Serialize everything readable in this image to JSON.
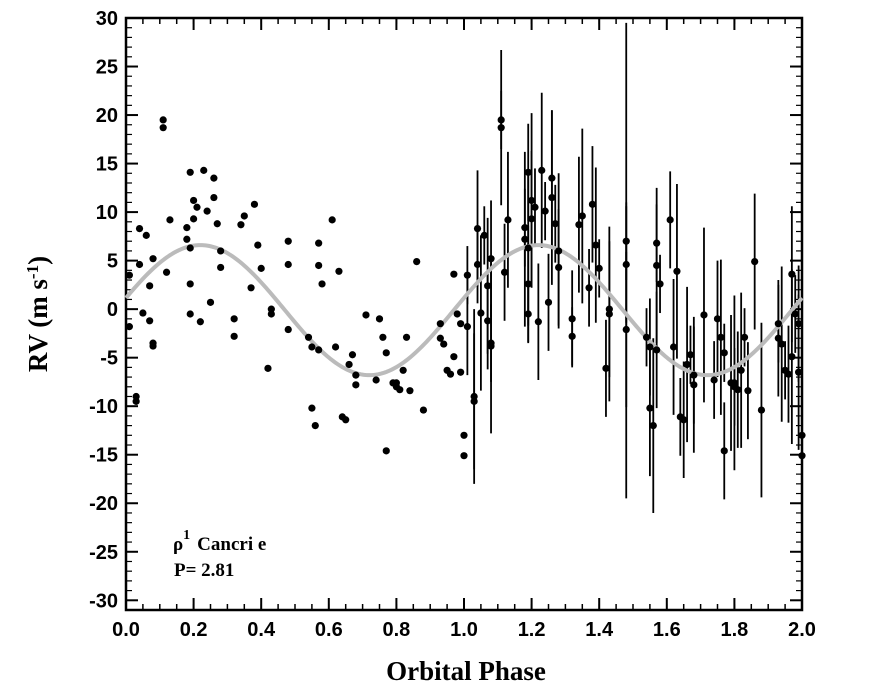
{
  "chart_data": {
    "type": "scatter",
    "xlabel": "Orbital Phase",
    "ylabel": {
      "main": "RV (m s",
      "sup": "-1",
      "close": ")"
    },
    "xlim": [
      0.0,
      2.0
    ],
    "ylim": [
      -31,
      30
    ],
    "x_ticks": [
      0.0,
      0.2,
      0.4,
      0.6,
      0.8,
      1.0,
      1.2,
      1.4,
      1.6,
      1.8,
      2.0
    ],
    "x_tick_labels": [
      "0.0",
      "0.2",
      "0.4",
      "0.6",
      "0.8",
      "1.0",
      "1.2",
      "1.4",
      "1.6",
      "1.8",
      "2.0"
    ],
    "y_ticks": [
      -30,
      -25,
      -20,
      -15,
      -10,
      -5,
      0,
      5,
      10,
      15,
      20,
      25,
      30
    ],
    "y_tick_labels": [
      "-30",
      "-25",
      "-20",
      "-15",
      "-10",
      "-5",
      "0",
      "5",
      "10",
      "15",
      "20",
      "25",
      "30"
    ],
    "grid": false,
    "annotation": {
      "object": {
        "symbol": "ρ",
        "sup": "1",
        "name": "Cancri e"
      },
      "period": "P= 2.81"
    },
    "fit_curve": {
      "amplitude": 6.7,
      "offset": -0.1,
      "phase_of_max": 0.22,
      "period_in_phase": 1.0,
      "color": "#bbbbbb"
    },
    "points_phase": [
      [
        0.01,
        3.5
      ],
      [
        0.01,
        -1.8
      ],
      [
        0.03,
        -9.5
      ],
      [
        0.03,
        -9.0
      ],
      [
        0.04,
        4.6
      ],
      [
        0.04,
        8.3
      ],
      [
        0.05,
        -0.4
      ],
      [
        0.06,
        7.6
      ],
      [
        0.07,
        -1.2
      ],
      [
        0.07,
        2.4
      ],
      [
        0.08,
        -3.8
      ],
      [
        0.08,
        -3.5
      ],
      [
        0.08,
        5.2
      ],
      [
        0.11,
        18.7
      ],
      [
        0.11,
        19.5
      ],
      [
        0.12,
        3.8
      ],
      [
        0.13,
        9.2
      ],
      [
        0.18,
        7.2
      ],
      [
        0.18,
        8.4
      ],
      [
        0.19,
        2.6
      ],
      [
        0.19,
        6.3
      ],
      [
        0.19,
        -0.5
      ],
      [
        0.19,
        14.1
      ],
      [
        0.2,
        9.3
      ],
      [
        0.2,
        11.2
      ],
      [
        0.21,
        10.5
      ],
      [
        0.22,
        -1.3
      ],
      [
        0.23,
        14.3
      ],
      [
        0.24,
        10.1
      ],
      [
        0.25,
        0.7
      ],
      [
        0.26,
        13.5
      ],
      [
        0.26,
        11.5
      ],
      [
        0.27,
        8.8
      ],
      [
        0.28,
        4.3
      ],
      [
        0.28,
        6.0
      ],
      [
        0.32,
        -2.8
      ],
      [
        0.32,
        -1.0
      ],
      [
        0.34,
        8.7
      ],
      [
        0.35,
        9.6
      ],
      [
        0.37,
        2.2
      ],
      [
        0.38,
        10.8
      ],
      [
        0.39,
        6.6
      ],
      [
        0.4,
        4.2
      ],
      [
        0.42,
        -6.1
      ],
      [
        0.43,
        0.0
      ],
      [
        0.43,
        -0.5
      ],
      [
        0.48,
        7.0
      ],
      [
        0.48,
        4.6
      ],
      [
        0.48,
        -2.1
      ],
      [
        0.54,
        -2.9
      ],
      [
        0.55,
        -3.9
      ],
      [
        0.55,
        -10.2
      ],
      [
        0.56,
        -12.0
      ],
      [
        0.57,
        6.8
      ],
      [
        0.57,
        -4.2
      ],
      [
        0.57,
        4.5
      ],
      [
        0.58,
        2.6
      ],
      [
        0.61,
        9.2
      ],
      [
        0.62,
        -3.9
      ],
      [
        0.63,
        3.9
      ],
      [
        0.64,
        -11.1
      ],
      [
        0.65,
        -11.4
      ],
      [
        0.66,
        -5.7
      ],
      [
        0.67,
        -4.7
      ],
      [
        0.68,
        -6.8
      ],
      [
        0.68,
        -7.8
      ],
      [
        0.71,
        -0.6
      ],
      [
        0.74,
        -7.3
      ],
      [
        0.75,
        -1.0
      ],
      [
        0.76,
        -2.9
      ],
      [
        0.77,
        -4.5
      ],
      [
        0.77,
        -14.6
      ],
      [
        0.79,
        -7.6
      ],
      [
        0.8,
        -7.6
      ],
      [
        0.8,
        -8.0
      ],
      [
        0.81,
        -8.3
      ],
      [
        0.82,
        -6.3
      ],
      [
        0.83,
        -2.9
      ],
      [
        0.84,
        -8.4
      ],
      [
        0.86,
        4.9
      ],
      [
        0.88,
        -10.4
      ],
      [
        0.93,
        -1.5
      ],
      [
        0.93,
        -3.0
      ],
      [
        0.94,
        -3.6
      ],
      [
        0.95,
        -6.3
      ],
      [
        0.96,
        -6.7
      ],
      [
        0.97,
        3.6
      ],
      [
        0.97,
        -4.9
      ],
      [
        0.98,
        -0.5
      ],
      [
        0.99,
        -1.5
      ],
      [
        0.99,
        -6.5
      ],
      [
        1.0,
        -13.0
      ],
      [
        1.0,
        -15.1
      ]
    ],
    "extra_points": [
      [
        1.0,
        -6.5
      ],
      [
        1.01,
        1.9
      ],
      [
        1.03,
        -10.0
      ],
      [
        1.04,
        5.0
      ],
      [
        1.05,
        -1.0
      ],
      [
        1.06,
        2.0
      ]
    ],
    "error_bar_counts": {
      "phase_0_1": 0,
      "phase_1_2": "all"
    }
  }
}
